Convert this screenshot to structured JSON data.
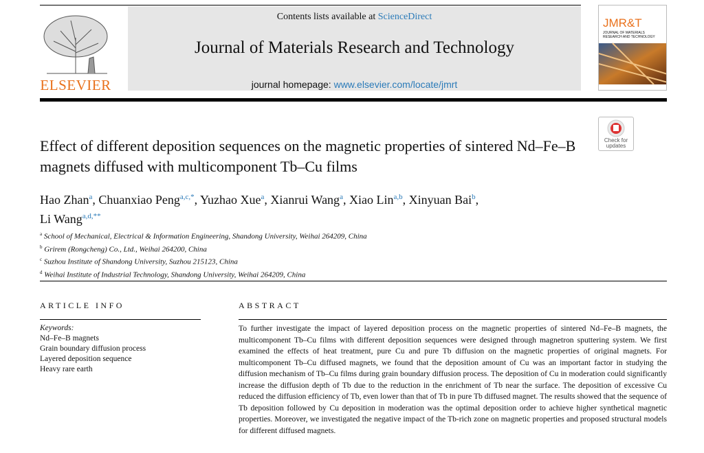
{
  "header": {
    "contents_prefix": "Contents lists available at",
    "contents_link": "ScienceDirect",
    "journal": "Journal of Materials Research and Technology",
    "homepage_prefix": "journal homepage:",
    "homepage_link": "www.elsevier.com/locate/jmrt",
    "publisher": "ELSEVIER",
    "cover_title": "JMR&T",
    "cover_subtitle": "JOURNAL OF MATERIALS RESEARCH AND TECHNOLOGY"
  },
  "check_updates": "Check for updates",
  "title": "Effect of different deposition sequences on the magnetic properties of sintered Nd–Fe–B magnets diffused with multicomponent Tb–Cu films",
  "authors": [
    {
      "name": "Hao Zhan",
      "affil": "a",
      "sep": ","
    },
    {
      "name": "Chuanxiao Peng",
      "affil": "a,c,*",
      "sep": ","
    },
    {
      "name": "Yuzhao Xue",
      "affil": "a",
      "sep": ","
    },
    {
      "name": "Xianrui Wang",
      "affil": "a",
      "sep": ","
    },
    {
      "name": "Xiao Lin",
      "affil": "a,b",
      "sep": ","
    },
    {
      "name": "Xinyuan Bai",
      "affil": "b",
      "sep": ","
    },
    {
      "name": "Li Wang",
      "affil": "a,d,**"
    }
  ],
  "affiliations": [
    {
      "mark": "a",
      "text": "School of Mechanical, Electrical & Information Engineering, Shandong University, Weihai 264209, China"
    },
    {
      "mark": "b",
      "text": "Grirem (Rongcheng) Co., Ltd., Weihai 264200, China"
    },
    {
      "mark": "c",
      "text": "Suzhou Institute of Shandong University, Suzhou 215123, China"
    },
    {
      "mark": "d",
      "text": "Weihai Institute of Industrial Technology, Shandong University, Weihai 264209, China"
    }
  ],
  "article_info": {
    "heading": "ARTICLE INFO",
    "keywords_label": "Keywords:",
    "keywords": [
      "Nd–Fe–B magnets",
      "Grain boundary diffusion process",
      "Layered deposition sequence",
      "Heavy rare earth"
    ]
  },
  "abstract": {
    "heading": "ABSTRACT",
    "text": "To further investigate the impact of layered deposition process on the magnetic properties of sintered Nd–Fe–B magnets, the multicomponent Tb–Cu films with different deposition sequences were designed through magnetron sputtering system. We first examined the effects of heat treatment, pure Cu and pure Tb diffusion on the magnetic properties of original magnets. For multicomponent Tb–Cu diffused magnets, we found that the deposition amount of Cu was an important factor in studying the diffusion mechanism of Tb–Cu films during grain boundary diffusion process. The deposition of Cu in moderation could significantly increase the diffusion depth of Tb due to the reduction in the enrichment of Tb near the surface. The deposition of excessive Cu reduced the diffusion efficiency of Tb, even lower than that of Tb in pure Tb diffused magnet. The results showed that the sequence of Tb deposition followed by Cu deposition in moderation was the optimal deposition order to achieve higher synthetical magnetic properties. Moreover, we investigated the negative impact of the Tb-rich zone on magnetic properties and proposed structural models for different diffused magnets."
  }
}
